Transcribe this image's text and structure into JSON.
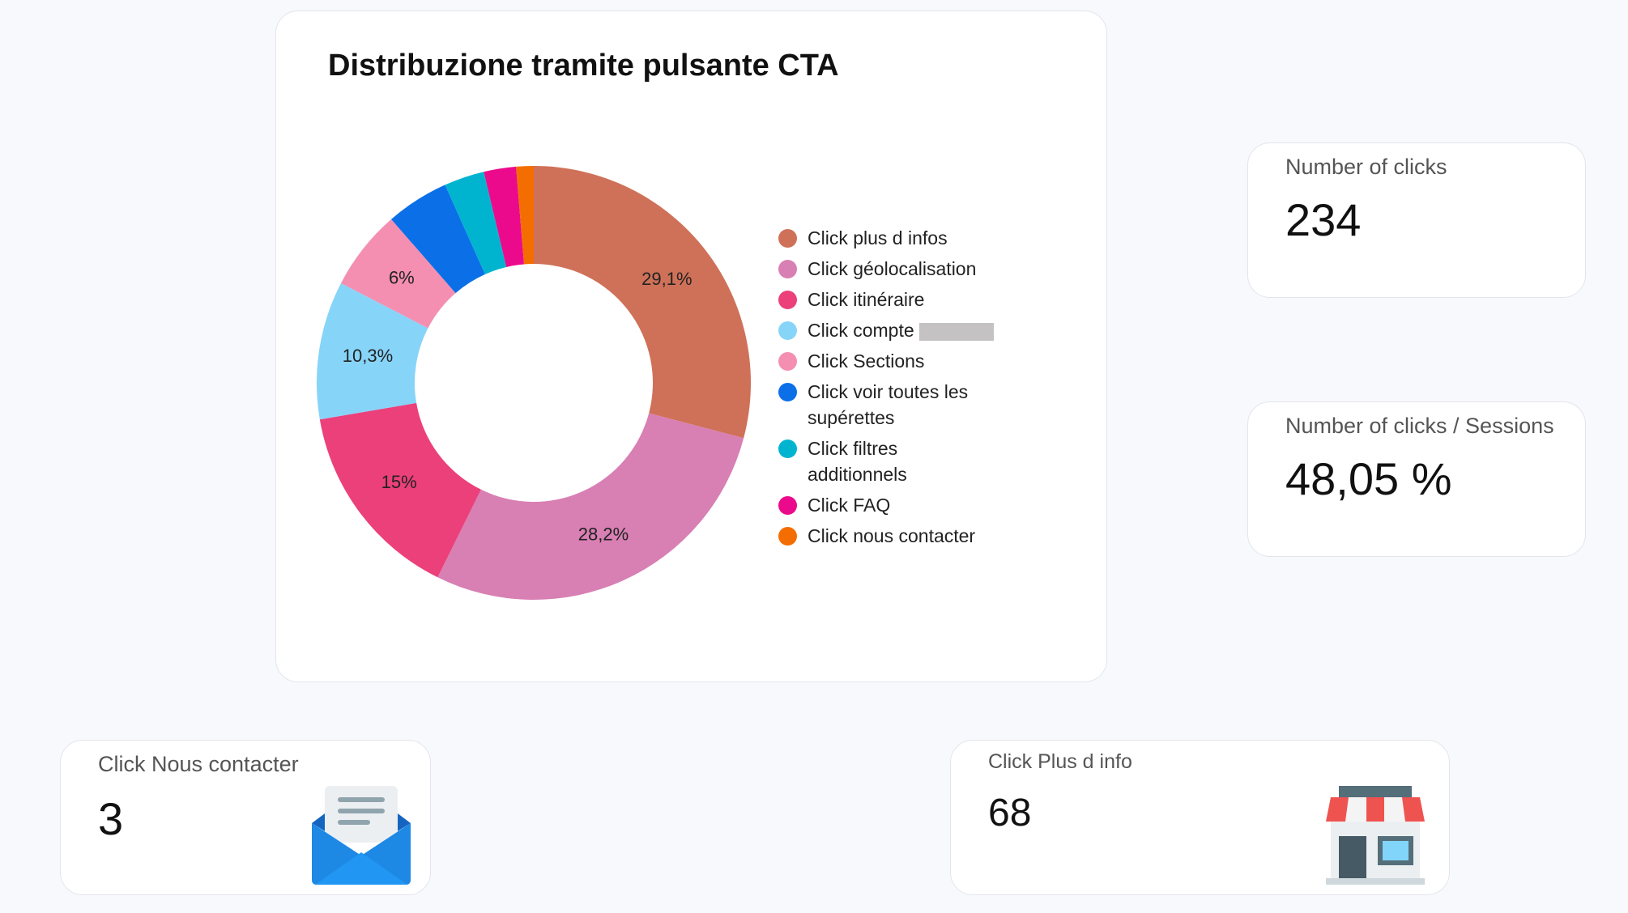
{
  "chart_data": {
    "type": "donut",
    "title": "Distribuzione tramite pulsante CTA",
    "categories": [
      "Click plus d infos",
      "Click géolocalisation",
      "Click itinéraire",
      "Click compte",
      "Click Sections",
      "Click voir toutes les supérettes",
      "Click filtres additionnels",
      "Click FAQ",
      "Click nous contacter"
    ],
    "values": [
      29.1,
      28.2,
      15,
      10.3,
      6,
      4.7,
      3,
      2.4,
      1.3
    ],
    "value_labels": [
      "29,1%",
      "28,2%",
      "15%",
      "10,3%",
      "6%",
      null,
      null,
      null,
      null
    ],
    "colors": [
      "#cf7158",
      "#d87fb3",
      "#ec407a",
      "#87d4f9",
      "#f48fb1",
      "#0b6fe8",
      "#00b4d0",
      "#ec0a8c",
      "#f46d00"
    ],
    "legend": "right"
  },
  "kpis": [
    {
      "label": "Number of clicks",
      "value": "234"
    },
    {
      "label": "Number of clicks / Sessions",
      "value": "48,05 %"
    },
    {
      "label": "Click Nous contacter",
      "value": "3"
    },
    {
      "label": "Click Plus d info",
      "value": "68"
    }
  ]
}
